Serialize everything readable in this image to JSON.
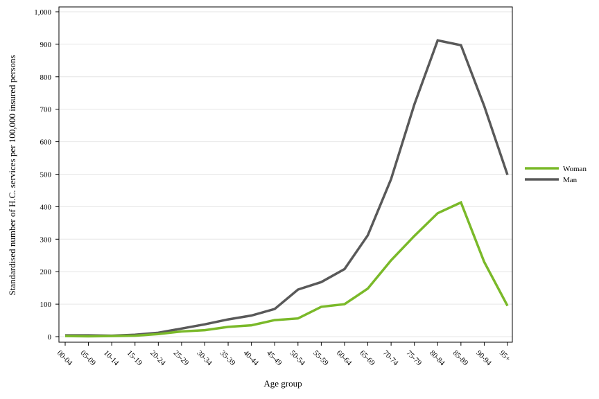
{
  "chart_data": {
    "type": "line",
    "xlabel": "Age group",
    "ylabel": "Standardised number of H.C. services per 100,000 insured persons",
    "categories": [
      "00-04",
      "05-09",
      "10-14",
      "15-19",
      "20-24",
      "25-29",
      "30-34",
      "35-39",
      "40-44",
      "45-49",
      "50-54",
      "55-59",
      "60-64",
      "65-69",
      "70-74",
      "75-79",
      "80-84",
      "85-89",
      "90-94",
      "95+"
    ],
    "y_ticks": [
      "0",
      "100",
      "200",
      "300",
      "400",
      "500",
      "600",
      "700",
      "800",
      "900",
      "1,000"
    ],
    "ylim": [
      0,
      1000
    ],
    "grid": true,
    "legend_position": "right",
    "series": [
      {
        "name": "Woman",
        "color": "#7ab929",
        "values": [
          2,
          1,
          2,
          3,
          8,
          16,
          20,
          30,
          35,
          51,
          56,
          92,
          100,
          148,
          235,
          310,
          380,
          413,
          230,
          95
        ]
      },
      {
        "name": "Man",
        "color": "#595959",
        "values": [
          4,
          4,
          3,
          6,
          12,
          25,
          38,
          53,
          65,
          85,
          145,
          168,
          208,
          312,
          485,
          715,
          912,
          897,
          710,
          498
        ]
      }
    ]
  }
}
